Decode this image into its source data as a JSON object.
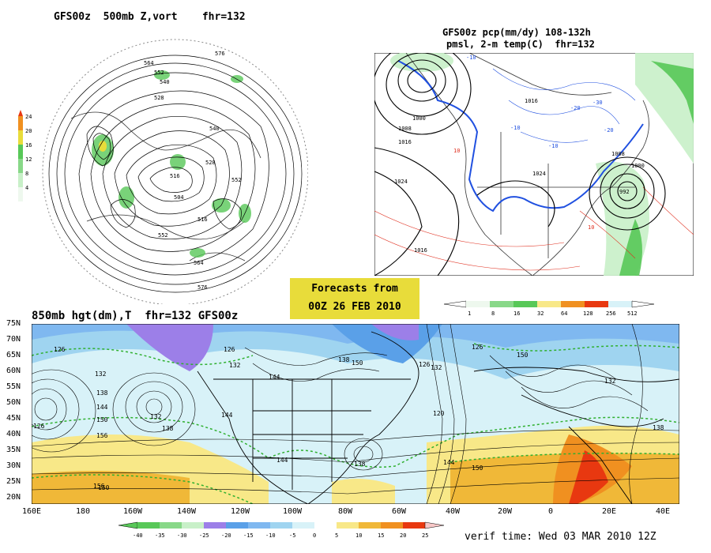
{
  "polar_panel": {
    "title": "GFS00z  500mb Z,vort    fhr=132",
    "colorbar_ticks": [
      "24",
      "20",
      "16",
      "12",
      "8",
      "4"
    ],
    "contour_labels": [
      "576",
      "564",
      "552",
      "540",
      "528",
      "516",
      "504",
      "516",
      "528",
      "540",
      "552",
      "564",
      "576",
      "552"
    ]
  },
  "precip_panel": {
    "title_line1": "GFS00z pcp(mm/dy) 108-132h",
    "title_line2": "pmsl, 2-m temp(C)  fhr=132",
    "isobar_labels": [
      "1000",
      "1008",
      "1016",
      "1024",
      "992",
      "1008",
      "1000",
      "1016",
      "1024",
      "1016"
    ],
    "temp_labels": [
      "-10",
      "-20",
      "-30",
      "-10",
      "10",
      "10",
      "-10",
      "-20"
    ],
    "colorbar_ticks": [
      "1",
      "8",
      "16",
      "32",
      "64",
      "128",
      "256",
      "512"
    ]
  },
  "banner": {
    "line1": "Forecasts from",
    "line2": "00Z 26 FEB 2010"
  },
  "main_panel": {
    "title": "850mb hgt(dm),T  fhr=132 GFS00z",
    "lat_labels": [
      "75N",
      "70N",
      "65N",
      "60N",
      "55N",
      "50N",
      "45N",
      "40N",
      "35N",
      "30N",
      "25N",
      "20N"
    ],
    "lon_labels": [
      "160E",
      "180",
      "160W",
      "140W",
      "120W",
      "100W",
      "80W",
      "60W",
      "40W",
      "20W",
      "0",
      "20E",
      "40E"
    ],
    "height_labels": [
      "126",
      "132",
      "138",
      "144",
      "150",
      "156",
      "126",
      "132",
      "138",
      "144",
      "150",
      "126",
      "132",
      "144",
      "150",
      "132",
      "126",
      "138",
      "144",
      "120",
      "150",
      "138",
      "144",
      "150",
      "126",
      "132",
      "138",
      "156"
    ],
    "colorbar_ticks": [
      "-40",
      "-35",
      "-30",
      "-25",
      "-20",
      "-15",
      "-10",
      "-5",
      "0",
      "5",
      "10",
      "15",
      "20",
      "25"
    ],
    "verif_time": "verif time: Wed 03 MAR 2010 12Z"
  },
  "colors": {
    "ocean_cold": "#7fb8f0",
    "cold_purple": "#9c7fe8",
    "cold_blue": "#5aa0e8",
    "cool": "#9fd4f0",
    "pale": "#d8f2f8",
    "warm_yellow": "#f8e888",
    "warm_orange": "#f0b838",
    "hot_orange": "#f09020",
    "hot_red": "#e83810",
    "precip_green": "#58c858",
    "banner": "#e8dc3a"
  }
}
